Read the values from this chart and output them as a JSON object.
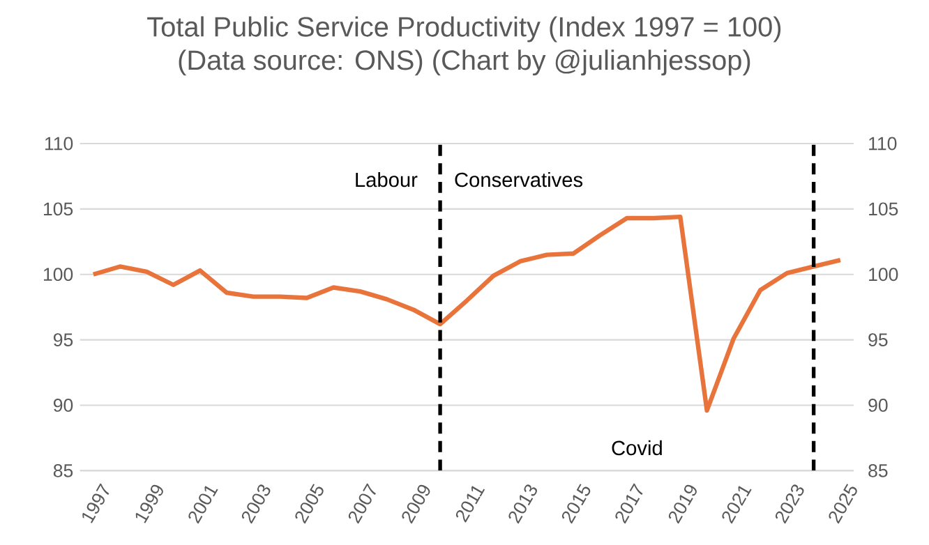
{
  "chart_data": {
    "type": "line",
    "title": "Total Public Service Productivity (Index 1997 = 100)",
    "subtitle": "(Data source: ONS) (Chart by @julianhjessop)",
    "x": [
      1997,
      1998,
      1999,
      2000,
      2001,
      2002,
      2003,
      2004,
      2005,
      2006,
      2007,
      2008,
      2009,
      2010,
      2011,
      2012,
      2013,
      2014,
      2015,
      2016,
      2017,
      2018,
      2019,
      2020,
      2021,
      2022,
      2023,
      2024,
      2025
    ],
    "series": [
      {
        "color": "#e8743b",
        "values": [
          100.0,
          100.6,
          100.2,
          99.2,
          100.3,
          98.6,
          98.3,
          98.3,
          98.2,
          99.0,
          98.7,
          98.1,
          97.3,
          96.2,
          98.0,
          99.9,
          101.0,
          101.5,
          101.6,
          103.0,
          104.3,
          104.3,
          104.4,
          89.6,
          95.1,
          98.8,
          100.1,
          100.6,
          101.1
        ]
      }
    ],
    "xlim": [
      1996.5,
      2025.5
    ],
    "xticks": [
      1997,
      1999,
      2001,
      2003,
      2005,
      2007,
      2009,
      2011,
      2013,
      2015,
      2017,
      2019,
      2021,
      2023,
      2025
    ],
    "ylim": [
      85,
      110
    ],
    "yticks": [
      85,
      90,
      95,
      100,
      105,
      110
    ],
    "y2lim": [
      85,
      110
    ],
    "y2ticks": [
      85,
      90,
      95,
      100,
      105,
      110
    ],
    "grid": "y",
    "marker": "none",
    "line_style": "solid",
    "ref_lines": [
      {
        "axis": "x",
        "value": 2010,
        "color": "#000000",
        "line_style": "dashed"
      },
      {
        "axis": "x",
        "value": 2024,
        "color": "#000000",
        "line_style": "dashed"
      }
    ],
    "annotations": [
      "Labour",
      "Conservatives",
      "Covid"
    ]
  }
}
